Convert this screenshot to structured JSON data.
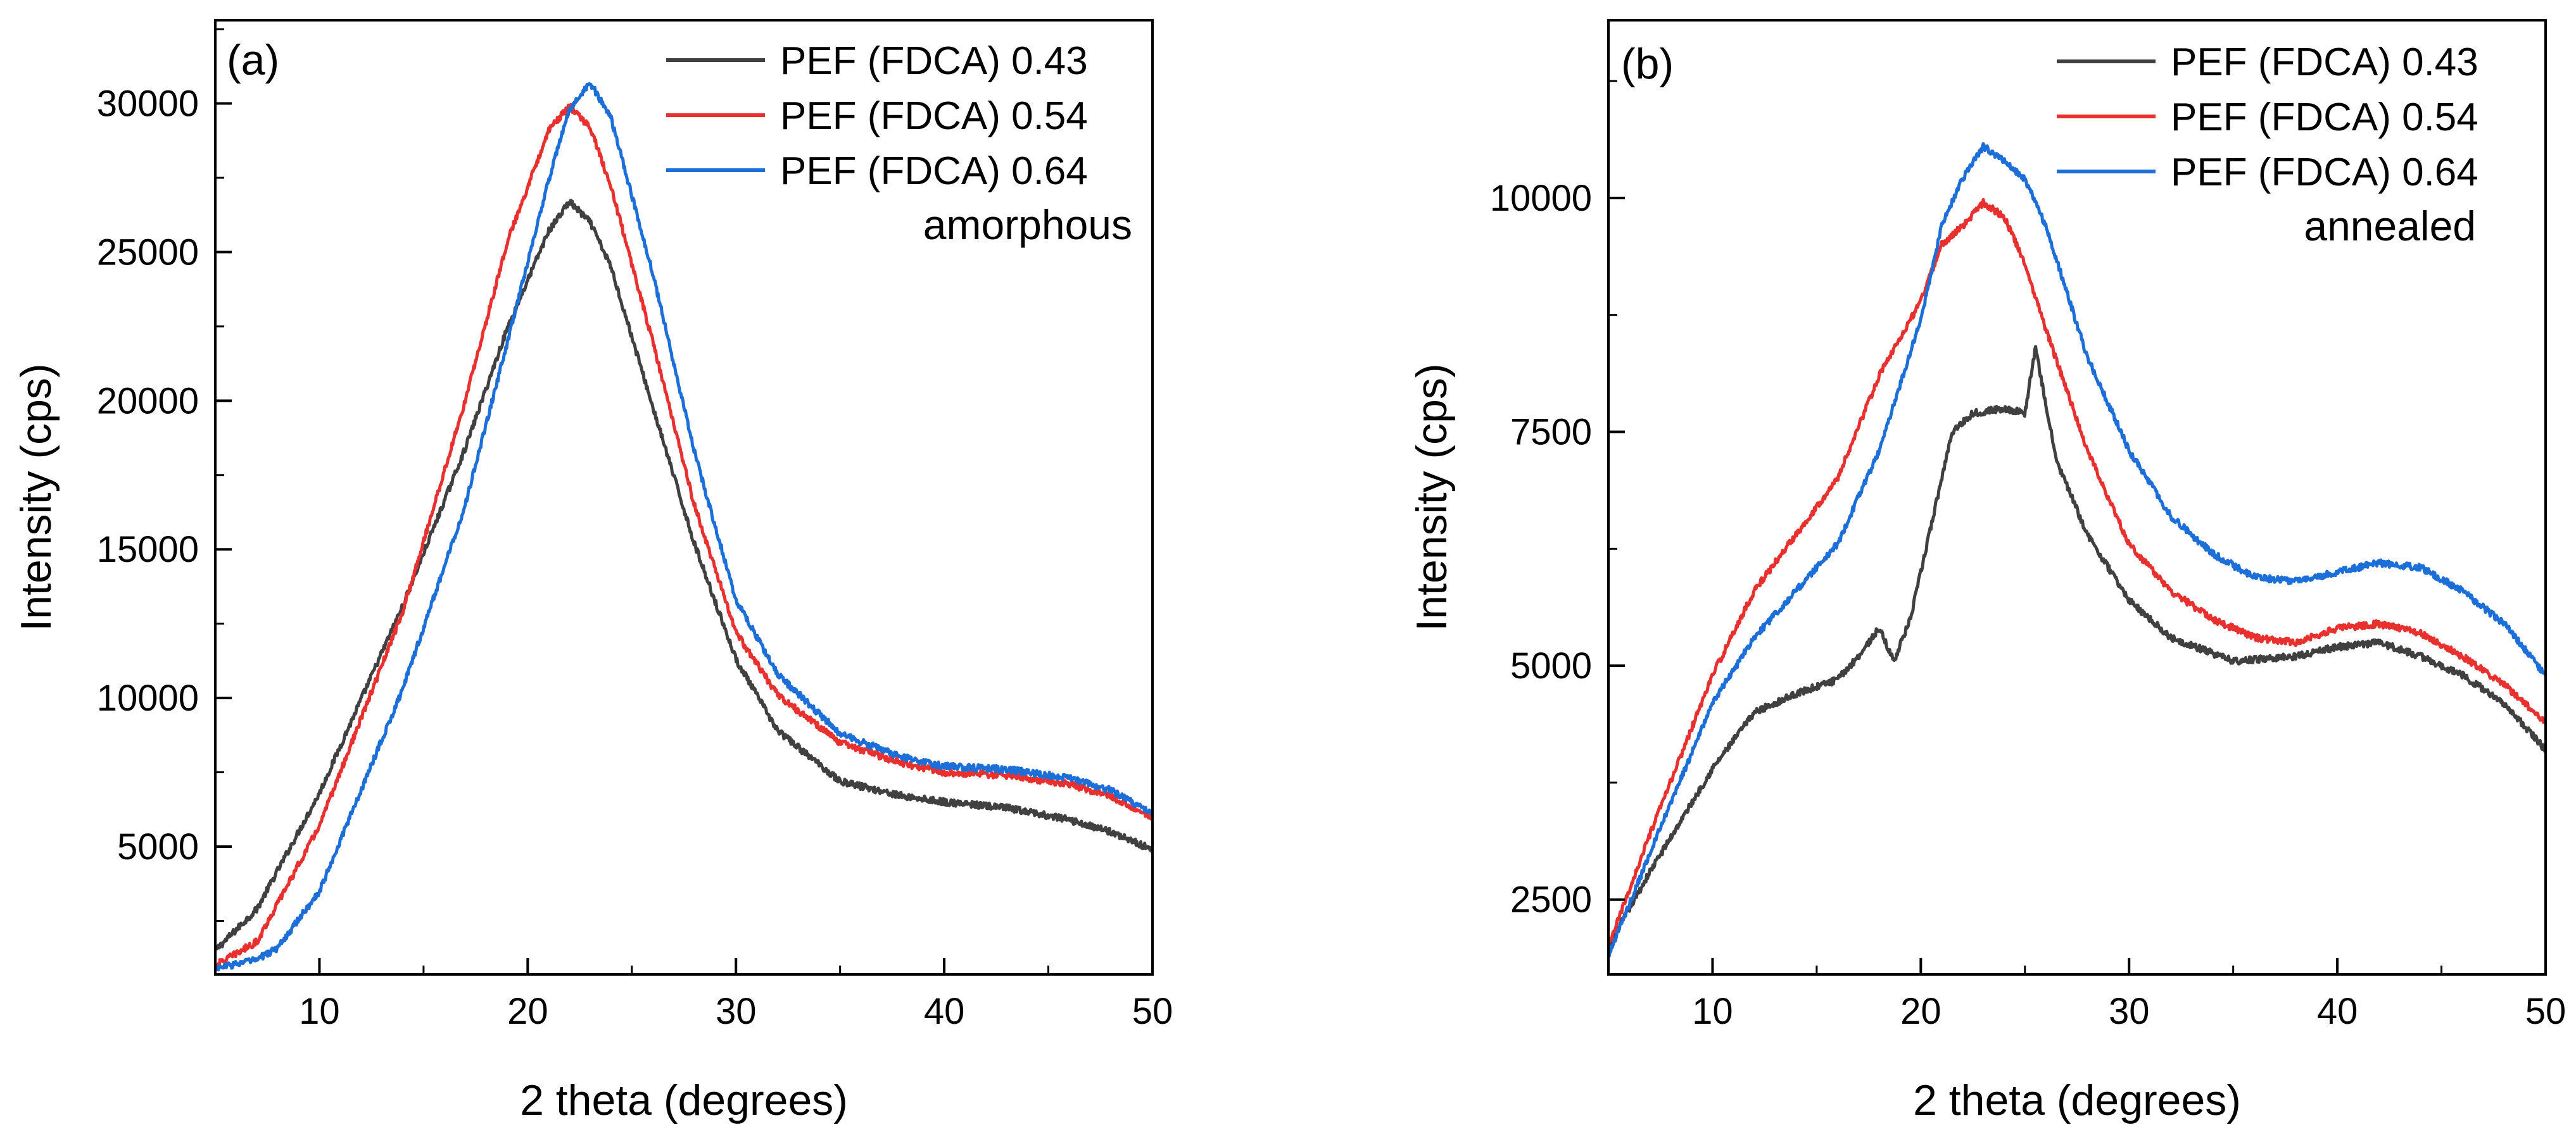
{
  "chart_data": [
    {
      "type": "line",
      "panel_label": "(a)",
      "annotation": "amorphous",
      "xlabel": "2 theta (degrees)",
      "ylabel": "Intensity (cps)",
      "xlim": [
        5,
        50
      ],
      "ylim": [
        700,
        32800
      ],
      "x_ticks": [
        10,
        20,
        30,
        40,
        50
      ],
      "x_tick_labels": [
        "10",
        "20",
        "30",
        "40",
        "50"
      ],
      "y_ticks": [
        5000,
        10000,
        15000,
        20000,
        25000,
        30000
      ],
      "y_tick_labels": [
        "5000",
        "10000",
        "15000",
        "20000",
        "25000",
        "30000"
      ],
      "legend_position": "top-right",
      "grid": false,
      "series": [
        {
          "name": "PEF (FDCA) 0.43",
          "color": "#404040",
          "x": [
            5,
            7,
            10,
            14,
            17,
            19,
            21,
            22,
            23,
            24,
            26,
            28,
            30,
            32,
            35,
            38,
            40,
            43,
            46,
            48,
            50
          ],
          "y": [
            1500,
            2900,
            6800,
            13100,
            18400,
            22400,
            25700,
            26700,
            26000,
            24500,
            19800,
            15200,
            11300,
            8900,
            7200,
            6700,
            6500,
            6300,
            5900,
            5500,
            4900
          ]
        },
        {
          "name": "PEF (FDCA) 0.54",
          "color": "#e8312f",
          "x": [
            5,
            7,
            10,
            14,
            17,
            19,
            21,
            22,
            23,
            24,
            26,
            28,
            30,
            32,
            35,
            38,
            40,
            43,
            46,
            48,
            50
          ],
          "y": [
            1000,
            1800,
            5700,
            12900,
            20000,
            25300,
            29100,
            29900,
            29200,
            27200,
            22000,
            16500,
            12200,
            10100,
            8500,
            7800,
            7500,
            7400,
            7100,
            6700,
            6000
          ]
        },
        {
          "name": "PEF (FDCA) 0.64",
          "color": "#1c6ed8",
          "x": [
            5,
            7,
            8,
            10,
            14,
            17,
            19,
            21,
            22,
            23,
            24,
            26,
            28,
            30,
            32,
            35,
            38,
            40,
            43,
            46,
            48,
            50
          ],
          "y": [
            900,
            1200,
            1600,
            3500,
            10300,
            16500,
            21900,
            27400,
            29800,
            30700,
            29500,
            24300,
            18300,
            13300,
            10800,
            8800,
            8000,
            7700,
            7600,
            7300,
            6900,
            6100
          ]
        }
      ]
    },
    {
      "type": "line",
      "panel_label": "(b)",
      "annotation": "annealed",
      "xlabel": "2 theta (degrees)",
      "ylabel": "Intensity (cps)",
      "xlim": [
        5,
        50
      ],
      "ylim": [
        1700,
        11900
      ],
      "x_ticks": [
        10,
        20,
        30,
        40,
        50
      ],
      "x_tick_labels": [
        "10",
        "20",
        "30",
        "40",
        "50"
      ],
      "y_ticks": [
        2500,
        5000,
        7500,
        10000
      ],
      "y_tick_labels": [
        "2500",
        "5000",
        "7500",
        "10000"
      ],
      "legend_position": "top-right",
      "grid": false,
      "series": [
        {
          "name": "PEF (FDCA) 0.43",
          "color": "#404040",
          "x": [
            5,
            7,
            10,
            12,
            14,
            16,
            17,
            18,
            18.7,
            19.5,
            20.5,
            21.5,
            22.5,
            24,
            25,
            25.5,
            26.5,
            28,
            30,
            32,
            35,
            38,
            40,
            42,
            44,
            46,
            48,
            50
          ],
          "y": [
            2000,
            2800,
            3900,
            4500,
            4700,
            4850,
            5100,
            5400,
            5050,
            5500,
            6500,
            7500,
            7700,
            7750,
            7700,
            8400,
            7200,
            6400,
            5700,
            5300,
            5050,
            5100,
            5200,
            5250,
            5100,
            4900,
            4600,
            4100
          ]
        },
        {
          "name": "PEF (FDCA) 0.54",
          "color": "#e8312f",
          "x": [
            5,
            7,
            10,
            12,
            14,
            16,
            18,
            20,
            21,
            22,
            23,
            24,
            25,
            26,
            28,
            30,
            32,
            34,
            36,
            38,
            40,
            42,
            44,
            46,
            48,
            50
          ],
          "y": [
            2000,
            3200,
            4900,
            5800,
            6400,
            7000,
            8100,
            8900,
            9500,
            9700,
            9950,
            9800,
            9300,
            8600,
            7300,
            6300,
            5800,
            5500,
            5300,
            5250,
            5400,
            5450,
            5350,
            5100,
            4800,
            4400
          ]
        },
        {
          "name": "PEF (FDCA) 0.64",
          "color": "#1c6ed8",
          "x": [
            5,
            7,
            10,
            12,
            14,
            16,
            18,
            20,
            21,
            22,
            23,
            24,
            25,
            26,
            28,
            30,
            32,
            34,
            36,
            38,
            40,
            42,
            44,
            46,
            48,
            50
          ],
          "y": [
            1900,
            3000,
            4600,
            5300,
            5800,
            6300,
            7300,
            8700,
            9700,
            10200,
            10550,
            10400,
            10200,
            9700,
            8300,
            7300,
            6600,
            6200,
            5950,
            5900,
            6000,
            6100,
            6050,
            5800,
            5450,
            4900
          ]
        }
      ]
    }
  ]
}
